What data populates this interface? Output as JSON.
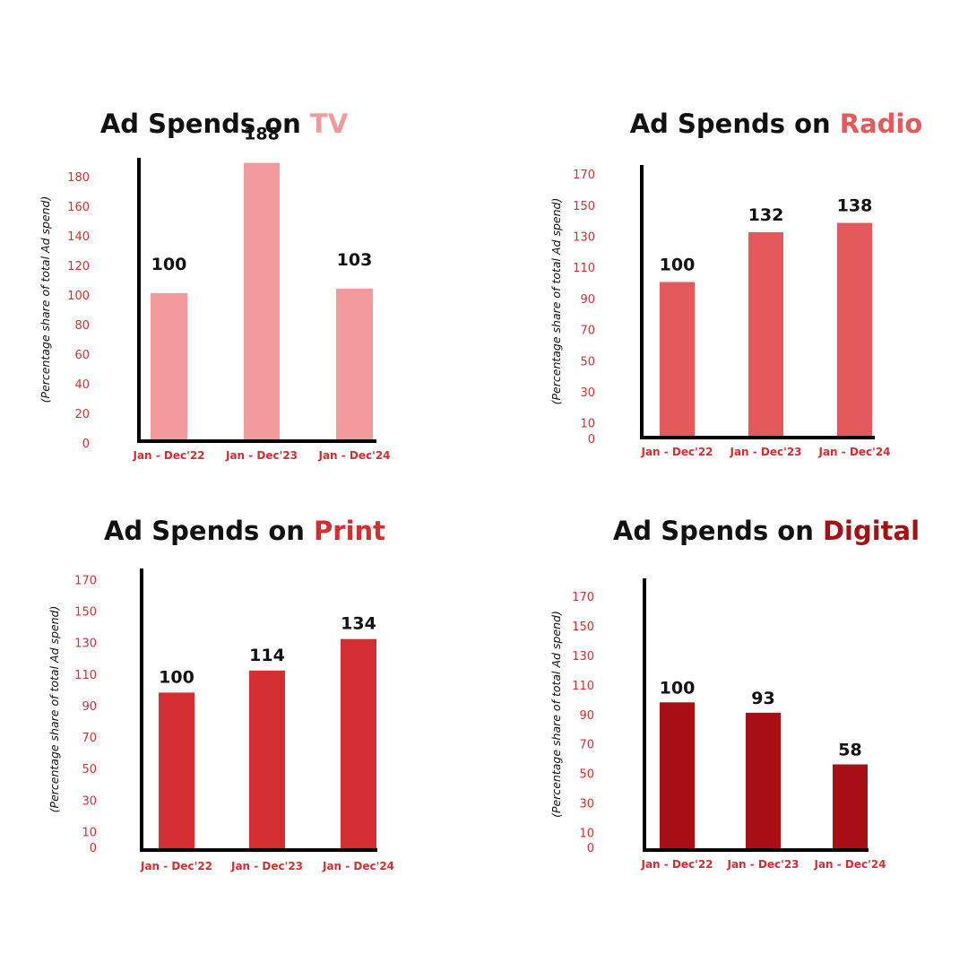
{
  "chart_data": [
    {
      "type": "bar",
      "title_prefix": "Ad Spends on",
      "title_highlight": "TV",
      "ylabel": "(Percentage share of total Ad spend)",
      "categories": [
        "Jan - Dec'22",
        "Jan - Dec'23",
        "Jan - Dec'24"
      ],
      "values": [
        100,
        188,
        103
      ],
      "data_labels": [
        "100",
        "188",
        "103"
      ],
      "yticks": [
        0,
        20,
        40,
        60,
        80,
        100,
        120,
        140,
        160,
        180
      ],
      "color": "#f2999b",
      "title_color": "#f2999b"
    },
    {
      "type": "bar",
      "title_prefix": "Ad Spends on",
      "title_highlight": "Radio",
      "ylabel": "(Percentage share of total Ad spend)",
      "categories": [
        "Jan - Dec'22",
        "Jan - Dec'23",
        "Jan - Dec'24"
      ],
      "values": [
        100,
        132,
        138
      ],
      "data_labels": [
        "100",
        "132",
        "138"
      ],
      "yticks": [
        0,
        10,
        30,
        50,
        70,
        90,
        110,
        130,
        150,
        170
      ],
      "color": "#e45a5c",
      "title_color": "#e45a5c"
    },
    {
      "type": "bar",
      "title_prefix": "Ad Spends on",
      "title_highlight": "Print",
      "ylabel": "(Percentage share of total Ad spend)",
      "categories": [
        "Jan - Dec'22",
        "Jan - Dec'23",
        "Jan - Dec'24"
      ],
      "values": [
        100,
        114,
        134
      ],
      "data_labels": [
        "100",
        "114",
        "134"
      ],
      "yticks": [
        0,
        10,
        30,
        50,
        70,
        90,
        110,
        130,
        150,
        170
      ],
      "color": "#d32f33",
      "title_color": "#d32f33"
    },
    {
      "type": "bar",
      "title_prefix": "Ad Spends on",
      "title_highlight": "Digital",
      "ylabel": "(Percentage share of total Ad spend)",
      "categories": [
        "Jan - Dec'22",
        "Jan - Dec'23",
        "Jan - Dec'24"
      ],
      "values": [
        100,
        93,
        58
      ],
      "data_labels": [
        "100",
        "93",
        "58"
      ],
      "yticks": [
        0,
        10,
        30,
        50,
        70,
        90,
        110,
        130,
        150,
        170
      ],
      "color": "#a80f14",
      "title_color": "#a80f14"
    }
  ],
  "colors": {
    "axis_text": "#d32f33",
    "title_text": "#111111",
    "axis_line": "#000000"
  }
}
